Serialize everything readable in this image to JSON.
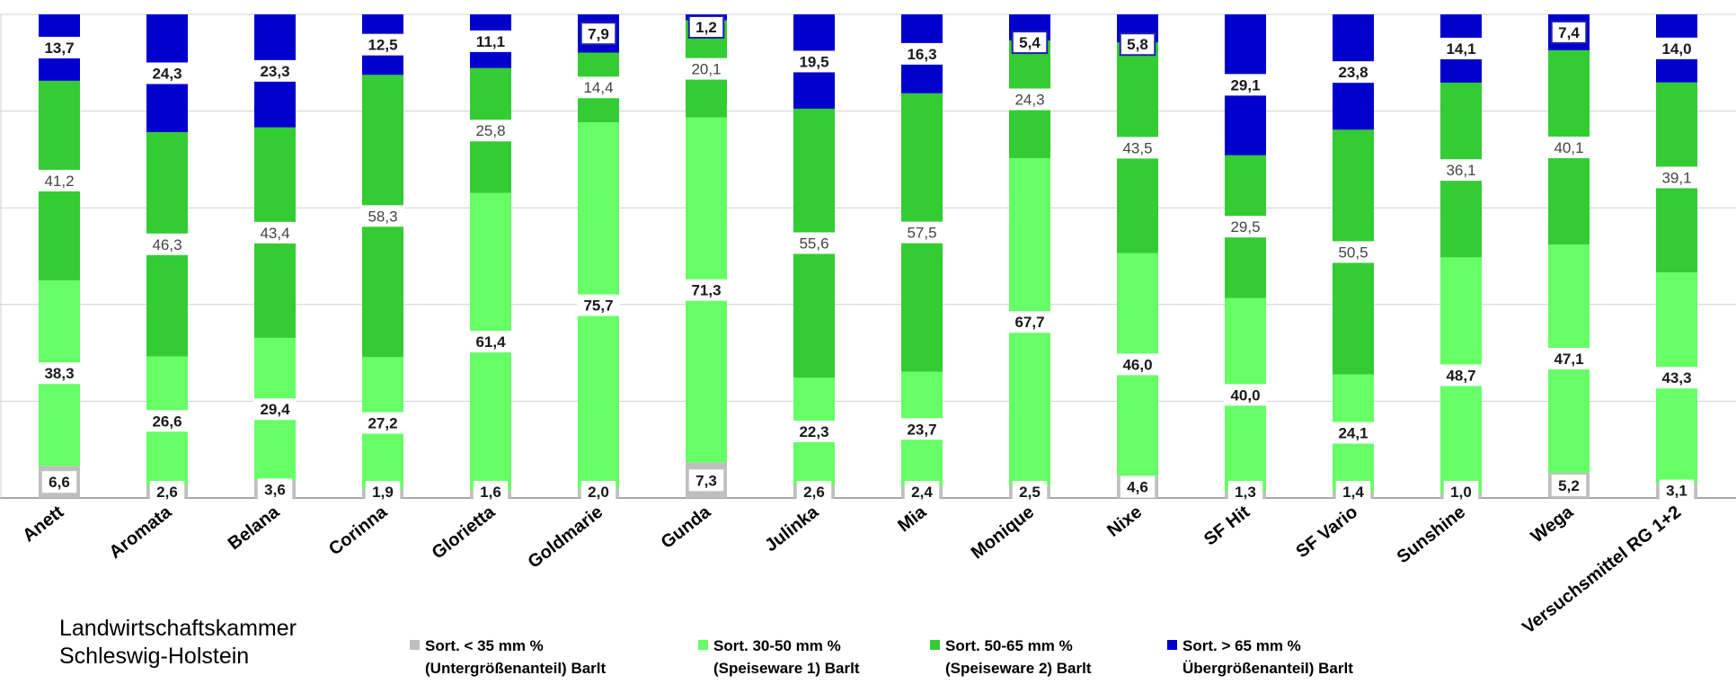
{
  "chart_data": {
    "type": "bar",
    "stacked": true,
    "percent_stacked": true,
    "categories": [
      "Anett",
      "Aromata",
      "Belana",
      "Corinna",
      "Glorietta",
      "Goldmarie",
      "Gunda",
      "Julinka",
      "Mia",
      "Monique",
      "Nixe",
      "SF Hit",
      "SF Vario",
      "Sunshine",
      "Wega",
      "Versuchsmittel  RG 1+2"
    ],
    "series": [
      {
        "name": "Sort.  < 35 mm % (Untergrößenanteil) Barlt",
        "color": "#bfbfbf",
        "values": [
          6.6,
          2.6,
          3.6,
          1.9,
          1.6,
          2.0,
          7.3,
          2.6,
          2.4,
          2.5,
          4.6,
          1.3,
          1.4,
          1.0,
          5.2,
          3.1
        ]
      },
      {
        "name": "Sort. 30-50 mm % (Speiseware 1) Barlt",
        "color": "#66ff66",
        "values": [
          38.3,
          26.6,
          29.4,
          27.2,
          61.4,
          75.7,
          71.3,
          22.3,
          23.7,
          67.7,
          46.0,
          40.0,
          24.1,
          48.7,
          47.1,
          43.3
        ]
      },
      {
        "name": "Sort. 50-65 mm % (Speiseware 2) Barlt",
        "color": "#33cc33",
        "values": [
          41.2,
          46.3,
          43.4,
          58.3,
          25.8,
          14.4,
          20.1,
          55.6,
          57.5,
          24.3,
          43.5,
          29.5,
          50.5,
          36.1,
          40.1,
          39.1
        ]
      },
      {
        "name": "Sort. > 65 mm % Übergrößenanteil) Barlt",
        "color": "#0000cc",
        "values": [
          13.7,
          24.3,
          23.3,
          12.5,
          11.1,
          7.9,
          1.2,
          19.5,
          16.3,
          5.4,
          5.8,
          29.1,
          23.8,
          14.1,
          7.4,
          14.0
        ]
      }
    ],
    "value_labels": [
      [
        "6,6",
        "2,6",
        "3,6",
        "1,9",
        "1,6",
        "2,0",
        "7,3",
        "2,6",
        "2,4",
        "2,5",
        "4,6",
        "1,3",
        "1,4",
        "1,0",
        "5,2",
        "3,1"
      ],
      [
        "38,3",
        "26,6",
        "29,4",
        "27,2",
        "61,4",
        "75,7",
        "71,3",
        "22,3",
        "23,7",
        "67,7",
        "46,0",
        "40,0",
        "24,1",
        "48,7",
        "47,1",
        "43,3"
      ],
      [
        "41,2",
        "46,3",
        "43,4",
        "58,3",
        "25,8",
        "14,4",
        "20,1",
        "55,6",
        "57,5",
        "24,3",
        "43,5",
        "29,5",
        "50,5",
        "36,1",
        "40,1",
        "39,1"
      ],
      [
        "13,7",
        "24,3",
        "23,3",
        "12,5",
        "11,1",
        "7,9",
        "1,2",
        "19,5",
        "16,3",
        "5,4",
        "5,8",
        "29,1",
        "23,8",
        "14,1",
        "7,4",
        "14,0"
      ]
    ],
    "boxed_labels": [
      [
        3,
        5
      ],
      [
        3,
        6
      ],
      [
        3,
        9
      ],
      [
        3,
        10
      ],
      [
        3,
        14
      ]
    ],
    "ylim": [
      0,
      100
    ],
    "grid": true,
    "legend_position": "bottom",
    "title": "",
    "xlabel": "",
    "ylabel": ""
  },
  "footer": {
    "org_line1": "Landwirtschaftskammer",
    "org_line2": "Schleswig-Holstein"
  },
  "legend": [
    {
      "line1": "Sort.  < 35 mm %",
      "line2": "(Untergrößenanteil) Barlt",
      "color": "#bfbfbf"
    },
    {
      "line1": "Sort. 30-50 mm %",
      "line2": "(Speiseware 1) Barlt",
      "color": "#66ff66"
    },
    {
      "line1": "Sort. 50-65 mm %",
      "line2": "(Speiseware 2) Barlt",
      "color": "#33cc33"
    },
    {
      "line1": "Sort. > 65 mm %",
      "line2": "Übergrößenanteil) Barlt",
      "color": "#0000cc"
    }
  ]
}
